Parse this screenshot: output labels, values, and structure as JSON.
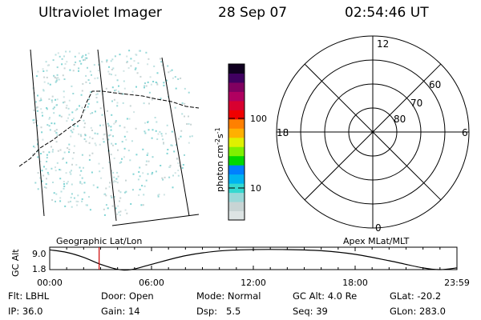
{
  "header": {
    "title": "Ultraviolet Imager",
    "date": "28 Sep 07",
    "time": "02:54:46 UT"
  },
  "colorbar": {
    "unit_label": "photon cm",
    "unit_exp1": "-2",
    "unit_s": "s",
    "unit_exp2": "-1",
    "ticks": [
      "100",
      "10"
    ],
    "scale": "log",
    "colors": [
      "#dde4e4",
      "#c8d4d4",
      "#9ad8d8",
      "#35d8d0",
      "#00b4f0",
      "#0080ff",
      "#00d800",
      "#7ff000",
      "#e0f000",
      "#ffb000",
      "#ff8000",
      "#f00000",
      "#d80030",
      "#b00060",
      "#800060",
      "#400060",
      "#100020"
    ]
  },
  "polar": {
    "mlt_labels": {
      "top": "12",
      "bottom": "0",
      "left": "18",
      "right": "6"
    },
    "lat_labels": [
      "60",
      "70",
      "80"
    ]
  },
  "timeline": {
    "left_title": "Geographic Lat/Lon",
    "right_title": "Apex MLat/MLT",
    "ylabel": "GC Alt",
    "yticks": [
      "9.0",
      "1.8"
    ],
    "xticks": [
      "00:00",
      "06:00",
      "12:00",
      "18:00",
      "23:59"
    ],
    "current_time_hours": 2.913,
    "marker_color": "#cc0000"
  },
  "chart_data": {
    "type": "line",
    "title": "",
    "xlabel": "",
    "ylabel": "GC Alt",
    "x": [
      0.0,
      1.0,
      2.0,
      3.0,
      4.0,
      4.8,
      6.0,
      8.0,
      10.0,
      12.0,
      14.0,
      16.0,
      18.0,
      20.0,
      22.0,
      23.0,
      23.99
    ],
    "y": [
      8.9,
      8.0,
      6.2,
      3.7,
      1.9,
      1.8,
      3.7,
      6.8,
      8.5,
      9.0,
      9.0,
      8.6,
      7.3,
      5.0,
      2.4,
      1.8,
      2.4
    ],
    "xlim": [
      0,
      24
    ],
    "ylim": [
      1.8,
      9.0
    ],
    "grid": false,
    "legend": "none"
  },
  "info": {
    "row1": [
      {
        "label": "Flt:",
        "value": "LBHL"
      },
      {
        "label": "Door:",
        "value": "Open"
      },
      {
        "label": "Mode:",
        "value": "Normal"
      },
      {
        "label": "GC Alt:",
        "value": "4.0 Re"
      },
      {
        "label": "GLat:",
        "value": "-20.2"
      }
    ],
    "row2": [
      {
        "label": "IP:",
        "value": "36.0"
      },
      {
        "label": "Gain:",
        "value": "14"
      },
      {
        "label": "Dsp:",
        "value": "5.5"
      },
      {
        "label": "Seq:",
        "value": "39"
      },
      {
        "label": "GLon:",
        "value": "283.0"
      }
    ]
  }
}
